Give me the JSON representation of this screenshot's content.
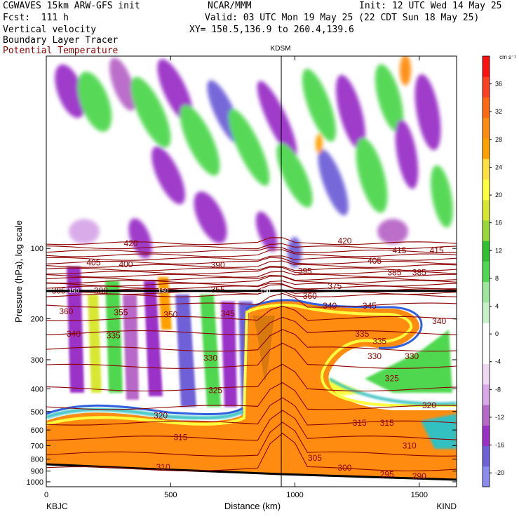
{
  "header": {
    "model": "CGWAVES 15km ARW-GFS init",
    "org": "NCAR/MMM",
    "init": "Init: 12 UTC Wed 14 May 25",
    "fcst": "Fcst:  111 h",
    "valid": "Valid: 03 UTC Mon 19 May 25 (22 CDT Sun 18 May 25)",
    "field1": "Vertical velocity",
    "xy": "XY= 150.5,136.9 to 260.4,139.6",
    "field2": "Boundary Layer Tracer",
    "field3": "Potential Temperature"
  },
  "colors": {
    "theta_contour": "#8b0000",
    "tropopause_line": "#000000"
  },
  "chart_data": {
    "type": "heatmap",
    "title": "KDSM",
    "xlabel": "Distance (km)",
    "ylabel": "Pressure (hPa), log scale",
    "xlim": [
      0,
      1650
    ],
    "ylim": [
      1050,
      15
    ],
    "y_scale": "log",
    "x_ticks": [
      "0",
      "500",
      "1000",
      "1500"
    ],
    "x_tick_values": [
      0,
      500,
      1000,
      1500
    ],
    "y_ticks": [
      "100",
      "200",
      "300",
      "400",
      "500",
      "600",
      "700",
      "800",
      "900",
      "1000"
    ],
    "y_tick_values": [
      100,
      200,
      300,
      400,
      500,
      600,
      700,
      800,
      900,
      1000
    ],
    "x_endpoints": [
      "KBJC",
      "KIND"
    ],
    "marker_x": 945,
    "colorbar": {
      "units": "cm s⁻¹",
      "tick_labels": [
        "36",
        "32",
        "28",
        "24",
        "20",
        "16",
        "12",
        "8",
        "4",
        "0",
        "-4",
        "-8",
        "-12",
        "-16",
        "-20"
      ],
      "tick_values": [
        36,
        32,
        28,
        24,
        20,
        16,
        12,
        8,
        4,
        0,
        -4,
        -8,
        -12,
        -16,
        -20
      ],
      "range": [
        -22,
        40
      ],
      "colors": [
        "#8c8cf0",
        "#7060d8",
        "#9a30c8",
        "#b868c8",
        "#d8a8e8",
        "#f0d8f4",
        "#ffffff",
        "#ffffff",
        "#c8f0c8",
        "#9ee89e",
        "#50d850",
        "#30c030",
        "#9ad838",
        "#d8e830",
        "#ffff40",
        "#ffe040",
        "#ffa000",
        "#ff8c10",
        "#ff6a10",
        "#ff4020",
        "#ff1010"
      ]
    },
    "theta_labels": [
      {
        "x": 340,
        "p": 95,
        "t": "420"
      },
      {
        "x": 1200,
        "p": 93,
        "t": "420"
      },
      {
        "x": 190,
        "p": 115,
        "t": "405"
      },
      {
        "x": 320,
        "p": 117,
        "t": "400"
      },
      {
        "x": 690,
        "p": 118,
        "t": "390"
      },
      {
        "x": 1320,
        "p": 113,
        "t": "405"
      },
      {
        "x": 1420,
        "p": 102,
        "t": "415"
      },
      {
        "x": 1570,
        "p": 102,
        "t": "415"
      },
      {
        "x": 1040,
        "p": 125,
        "t": "395"
      },
      {
        "x": 1400,
        "p": 127,
        "t": "385"
      },
      {
        "x": 1500,
        "p": 127,
        "t": "385"
      },
      {
        "x": 1160,
        "p": 145,
        "t": "375"
      },
      {
        "x": 50,
        "p": 152,
        "t": "385"
      },
      {
        "x": 220,
        "p": 152,
        "t": "380"
      },
      {
        "x": 690,
        "p": 150,
        "t": "355"
      },
      {
        "x": 1060,
        "p": 160,
        "t": "360"
      },
      {
        "x": 80,
        "p": 186,
        "t": "360"
      },
      {
        "x": 300,
        "p": 188,
        "t": "355"
      },
      {
        "x": 500,
        "p": 192,
        "t": "350"
      },
      {
        "x": 730,
        "p": 190,
        "t": "345"
      },
      {
        "x": 1140,
        "p": 176,
        "t": "340"
      },
      {
        "x": 1300,
        "p": 176,
        "t": "345"
      },
      {
        "x": 1580,
        "p": 205,
        "t": "340"
      },
      {
        "x": 110,
        "p": 232,
        "t": "340"
      },
      {
        "x": 270,
        "p": 236,
        "t": "335"
      },
      {
        "x": 1270,
        "p": 232,
        "t": "335"
      },
      {
        "x": 1340,
        "p": 250,
        "t": "335"
      },
      {
        "x": 660,
        "p": 295,
        "t": "330"
      },
      {
        "x": 1320,
        "p": 290,
        "t": "330"
      },
      {
        "x": 1470,
        "p": 290,
        "t": "330"
      },
      {
        "x": 1390,
        "p": 360,
        "t": "325"
      },
      {
        "x": 680,
        "p": 405,
        "t": "325"
      },
      {
        "x": 460,
        "p": 520,
        "t": "320"
      },
      {
        "x": 1540,
        "p": 470,
        "t": "320"
      },
      {
        "x": 1260,
        "p": 560,
        "t": "315"
      },
      {
        "x": 1370,
        "p": 560,
        "t": "315"
      },
      {
        "x": 540,
        "p": 645,
        "t": "315"
      },
      {
        "x": 1460,
        "p": 700,
        "t": "310"
      },
      {
        "x": 470,
        "p": 865,
        "t": "310"
      },
      {
        "x": 1080,
        "p": 790,
        "t": "305"
      },
      {
        "x": 1200,
        "p": 870,
        "t": "300"
      },
      {
        "x": 1370,
        "p": 930,
        "t": "295"
      },
      {
        "x": 1500,
        "p": 945,
        "t": "290"
      }
    ],
    "tropopause": {
      "p": 152,
      "labels": [
        {
          "x": 110,
          "t": "150"
        },
        {
          "x": 470,
          "t": "150"
        },
        {
          "x": 880,
          "t": "150"
        }
      ]
    }
  }
}
